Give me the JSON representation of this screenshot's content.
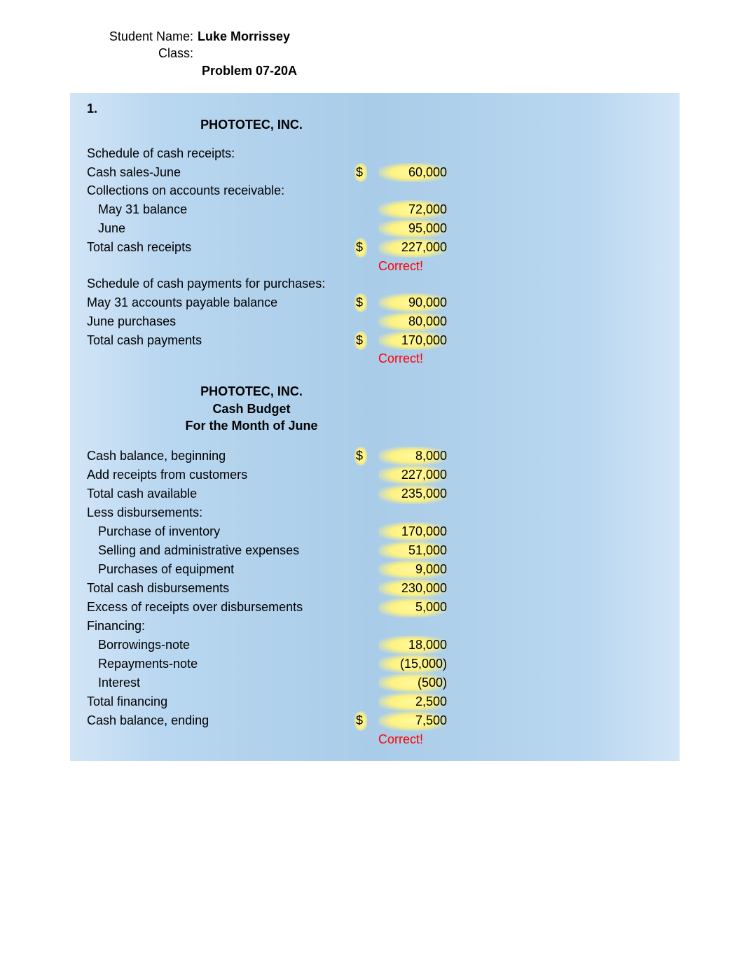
{
  "header": {
    "student_label": "Student Name:",
    "student_value": "Luke Morrissey",
    "class_label": "Class:",
    "class_value": "",
    "problem": "Problem 07-20A"
  },
  "section_num": "1.",
  "company": "PHOTOTEC, INC.",
  "receipts": {
    "title": "Schedule of cash receipts:",
    "rows": [
      {
        "label": "Cash sales-June",
        "cur": "$",
        "val": "60,000",
        "indent": false
      },
      {
        "label": "Collections on accounts receivable:",
        "cur": "",
        "val": "",
        "indent": false
      },
      {
        "label": "May 31 balance",
        "cur": "",
        "val": "72,000",
        "indent": true
      },
      {
        "label": "June",
        "cur": "",
        "val": "95,000",
        "indent": true
      },
      {
        "label": "Total cash receipts",
        "cur": "$",
        "val": "227,000",
        "indent": false
      }
    ],
    "correct": "Correct!"
  },
  "payments": {
    "title": "Schedule of cash payments for purchases:",
    "rows": [
      {
        "label": "May 31 accounts payable balance",
        "cur": "$",
        "val": "90,000",
        "indent": false
      },
      {
        "label": "June purchases",
        "cur": "",
        "val": "80,000",
        "indent": false
      },
      {
        "label": "Total cash payments",
        "cur": "$",
        "val": "170,000",
        "indent": false
      }
    ],
    "correct": "Correct!"
  },
  "budget": {
    "title1": "PHOTOTEC, INC.",
    "title2": "Cash Budget",
    "title3": "For the Month of June",
    "rows": [
      {
        "label": "Cash balance, beginning",
        "cur": "$",
        "val": "8,000",
        "indent": false
      },
      {
        "label": "Add receipts from customers",
        "cur": "",
        "val": "227,000",
        "indent": false
      },
      {
        "label": "Total cash available",
        "cur": "",
        "val": "235,000",
        "indent": false
      },
      {
        "label": "Less disbursements:",
        "cur": "",
        "val": "",
        "indent": false
      },
      {
        "label": "Purchase of inventory",
        "cur": "",
        "val": "170,000",
        "indent": true
      },
      {
        "label": "Selling and administrative expenses",
        "cur": "",
        "val": "51,000",
        "indent": true
      },
      {
        "label": "Purchases of equipment",
        "cur": "",
        "val": "9,000",
        "indent": true
      },
      {
        "label": "Total cash disbursements",
        "cur": "",
        "val": "230,000",
        "indent": false
      },
      {
        "label": "Excess of receipts over disbursements",
        "cur": "",
        "val": "5,000",
        "indent": false
      },
      {
        "label": "Financing:",
        "cur": "",
        "val": "",
        "indent": false
      },
      {
        "label": "Borrowings-note",
        "cur": "",
        "val": "18,000",
        "indent": true
      },
      {
        "label": "Repayments-note",
        "cur": "",
        "val": "(15,000)",
        "indent": true
      },
      {
        "label": "Interest",
        "cur": "",
        "val": "(500)",
        "indent": true
      },
      {
        "label": "Total financing",
        "cur": "",
        "val": "2,500",
        "indent": false
      },
      {
        "label": "Cash balance, ending",
        "cur": "$",
        "val": "7,500",
        "indent": false
      }
    ],
    "correct": "Correct!"
  },
  "colors": {
    "background": "#ffffff",
    "panel_gradient": [
      "#d3e5f7",
      "#a9cce8",
      "#d3e5f7"
    ],
    "highlight": "#fff280",
    "correct_text": "#ff0000",
    "text": "#000000"
  },
  "typography": {
    "font_family": "Arial",
    "base_size_pt": 14,
    "bold_weight": 700
  }
}
